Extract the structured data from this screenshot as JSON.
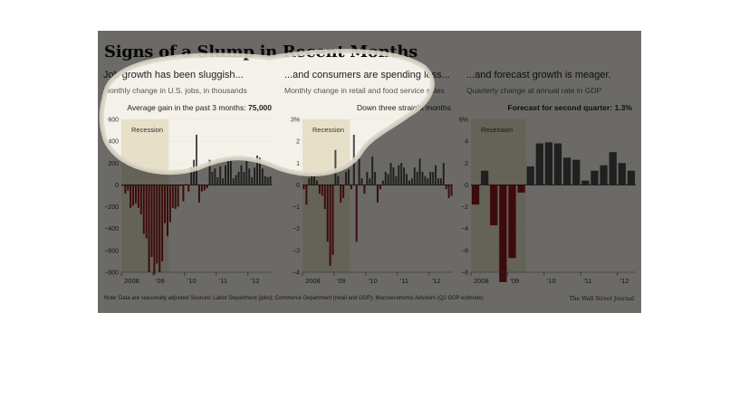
{
  "title": "Signs of a Slump in Recent Months",
  "footnote": "Note: Data are seasonally adjusted   Sources: Labor Department (jobs); Commerce Department (retail and GDP); Macroeconomic Advisors (Q2 GDP estimate)",
  "credit": "The Wall Street Journal",
  "colors": {
    "positive": "#4a4a4a",
    "negative": "#8b1a1a",
    "recession": "#e7e0c8",
    "frame": "#f3f1ea",
    "overlay": "#000000"
  },
  "panels": [
    {
      "title": "Job growth has been sluggish...",
      "subtitle": "Monthly change in U.S. jobs, in thousands",
      "annotation_label": "Average gain in the past 3 months:",
      "annotation_value": "75,000"
    },
    {
      "title": "...and consumers are spending less...",
      "subtitle": "Monthly change in retail and food service sales",
      "annotation_label": "Down three straight months",
      "annotation_value": ""
    },
    {
      "title": "...and forecast growth is meager.",
      "subtitle": "Quarterly change at annual rate in GDP",
      "annotation_label": "Forecast for second quarter:",
      "annotation_value": "1.3%"
    }
  ],
  "chart_data": [
    {
      "type": "bar",
      "title": "Job growth has been sluggish...",
      "subtitle": "Monthly change in U.S. jobs, in thousands",
      "x_start": "2008-01",
      "x_frequency": "monthly",
      "x_tick_labels": [
        "2008",
        "'09",
        "'10",
        "'11",
        "'12"
      ],
      "y_ticks": [
        600,
        400,
        200,
        0,
        -200,
        -400,
        -600,
        -800
      ],
      "y_tick_labels": [
        "600",
        "400",
        "200",
        "0",
        "−200",
        "−400",
        "−600",
        "−800"
      ],
      "ylim": [
        -800,
        600
      ],
      "recession": {
        "from": "2008-01",
        "to": "2009-06",
        "label": "Recession"
      },
      "values": [
        -10,
        -80,
        -50,
        -210,
        -190,
        -170,
        -210,
        -270,
        -450,
        -490,
        -800,
        -660,
        -820,
        -720,
        -800,
        -700,
        -350,
        -470,
        -340,
        -210,
        -220,
        -200,
        -10,
        -150,
        10,
        -60,
        160,
        230,
        460,
        -160,
        -60,
        -50,
        -30,
        230,
        120,
        150,
        70,
        170,
        60,
        180,
        220,
        230,
        60,
        90,
        120,
        180,
        120,
        230,
        150,
        70,
        160,
        270,
        250,
        150,
        80,
        70,
        80
      ]
    },
    {
      "type": "bar",
      "title": "...and consumers are spending less...",
      "subtitle": "Monthly change in retail and food service sales",
      "x_start": "2008-01",
      "x_frequency": "monthly",
      "x_tick_labels": [
        "2008",
        "'09",
        "'10",
        "'11",
        "'12"
      ],
      "y_ticks": [
        3,
        2,
        1,
        0,
        -1,
        -2,
        -3,
        -4
      ],
      "y_tick_labels": [
        "3%",
        "2",
        "1",
        "0",
        "−1",
        "−2",
        "−3",
        "−4"
      ],
      "ylim": [
        -4,
        3
      ],
      "recession": {
        "from": "2008-01",
        "to": "2009-06",
        "label": "Recession"
      },
      "values": [
        -0.2,
        -0.9,
        0.3,
        0.5,
        0.4,
        0.2,
        -0.4,
        -0.5,
        -1.1,
        -2.6,
        -3.7,
        -3.2,
        1.6,
        0.4,
        -0.8,
        -0.6,
        0.6,
        0.7,
        -0.2,
        2.3,
        -2.6,
        1.2,
        0.3,
        -0.4,
        0.6,
        0.3,
        1.3,
        0.6,
        -0.8,
        -0.2,
        0.2,
        0.6,
        0.5,
        1.0,
        0.8,
        0.4,
        0.9,
        1.0,
        0.8,
        0.5,
        0.2,
        0.3,
        0.8,
        0.6,
        1.2,
        0.6,
        0.4,
        0.3,
        0.6,
        0.6,
        0.9,
        0.3,
        0.3,
        1.0,
        -0.2,
        -0.6,
        -0.5
      ]
    },
    {
      "type": "bar",
      "title": "...and forecast growth is meager.",
      "subtitle": "Quarterly change at annual rate in GDP",
      "x_start": "2008-Q1",
      "x_frequency": "quarterly",
      "x_tick_labels": [
        "2008",
        "'09",
        "'10",
        "'11",
        "'12"
      ],
      "y_ticks": [
        6,
        4,
        2,
        0,
        -2,
        -4,
        -6,
        -8
      ],
      "y_tick_labels": [
        "6%",
        "4",
        "2",
        "0",
        "−2",
        "−4",
        "−6",
        "−8"
      ],
      "ylim": [
        -8,
        6
      ],
      "recession": {
        "from": "2008-Q1",
        "to": "2009-Q2",
        "label": "Recession"
      },
      "values": [
        -1.8,
        1.3,
        -3.7,
        -8.9,
        -6.7,
        -0.7,
        1.7,
        3.8,
        3.9,
        3.8,
        2.5,
        2.3,
        0.4,
        1.3,
        1.8,
        3.0,
        2.0,
        1.3
      ]
    }
  ]
}
